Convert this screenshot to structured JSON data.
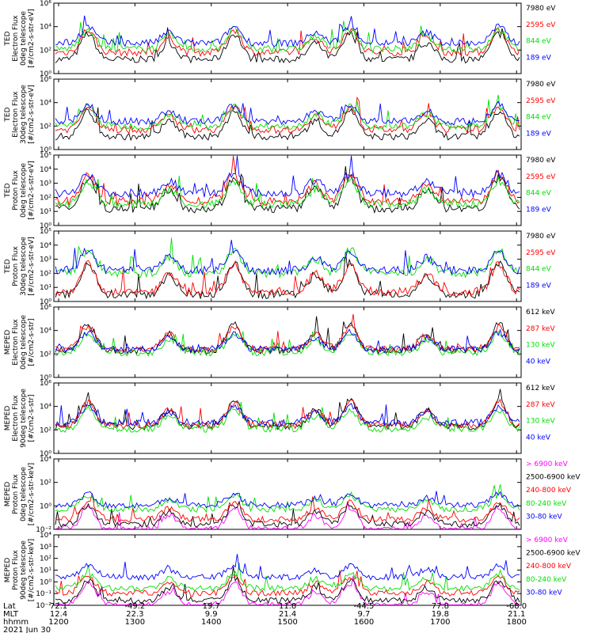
{
  "colors": {
    "black": "#000000",
    "red": "#ff0000",
    "green": "#00e000",
    "blue": "#0000ff",
    "magenta": "#ff00ff",
    "axis": "#000000"
  },
  "chart_data": [
    {
      "type": "line",
      "ylabel": [
        "TED",
        "Electron Flux",
        "0deg telescope",
        "[#/cm2-s-str-eV]"
      ],
      "yscale": "log",
      "ylim": [
        1,
        1000000
      ],
      "yticks": [
        "10⁰",
        "10²",
        "10⁴",
        "10⁶"
      ],
      "series": [
        {
          "name": "7980 eV",
          "color": "black",
          "level": 1.2
        },
        {
          "name": "2595 eV",
          "color": "red",
          "level": 1.8
        },
        {
          "name": "844 eV",
          "color": "green",
          "level": 2.1
        },
        {
          "name": "189 eV",
          "color": "blue",
          "level": 2.6
        }
      ]
    },
    {
      "type": "line",
      "ylabel": [
        "TED",
        "Electron Flux",
        "30deg telescope",
        "[#/cm2-s-str-eV]"
      ],
      "yscale": "log",
      "ylim": [
        1,
        1000000
      ],
      "yticks": [
        "10⁰",
        "10²",
        "10⁴",
        "10⁶"
      ],
      "series": [
        {
          "name": "7980 eV",
          "color": "black",
          "level": 1.1
        },
        {
          "name": "2595 eV",
          "color": "red",
          "level": 1.7
        },
        {
          "name": "844 eV",
          "color": "green",
          "level": 2.0
        },
        {
          "name": "189 eV",
          "color": "blue",
          "level": 2.4
        }
      ]
    },
    {
      "type": "line",
      "ylabel": [
        "TED",
        "Proton Flux",
        "0deg telescope",
        "[#/cm2-s-str-eV]"
      ],
      "yscale": "log",
      "ylim": [
        1,
        100000
      ],
      "yticks": [
        "10⁰",
        "10¹",
        "10²",
        "10³",
        "10⁴",
        "10⁵"
      ],
      "series": [
        {
          "name": "7980 eV",
          "color": "black",
          "level": 1.2
        },
        {
          "name": "2595 eV",
          "color": "red",
          "level": 1.7
        },
        {
          "name": "844 eV",
          "color": "green",
          "level": 1.5
        },
        {
          "name": "189 eV",
          "color": "blue",
          "level": 2.3
        }
      ]
    },
    {
      "type": "line",
      "ylabel": [
        "TED",
        "Proton Flux",
        "30deg telescope",
        "[#/cm2-s-str-eV]"
      ],
      "yscale": "log",
      "ylim": [
        1,
        100000
      ],
      "yticks": [
        "10⁰",
        "10¹",
        "10²",
        "10³",
        "10⁴",
        "10⁵"
      ],
      "series": [
        {
          "name": "7980 eV",
          "color": "black",
          "level": 0.5
        },
        {
          "name": "2595 eV",
          "color": "red",
          "level": 0.7
        },
        {
          "name": "844 eV",
          "color": "green",
          "level": 2.0
        },
        {
          "name": "189 eV",
          "color": "blue",
          "level": 2.2
        }
      ]
    },
    {
      "type": "line",
      "ylabel": [
        "MEPED",
        "Electron Flux",
        "0deg telescope",
        "[#/cm2-s-str]"
      ],
      "yscale": "log",
      "ylim": [
        1,
        1000000
      ],
      "yticks": [
        "10⁰",
        "10²",
        "10⁴",
        "10⁶"
      ],
      "series": [
        {
          "name": "612 keV",
          "color": "black",
          "level": 2.3
        },
        {
          "name": "287 keV",
          "color": "red",
          "level": 2.4
        },
        {
          "name": "130 keV",
          "color": "green",
          "level": 2.1
        },
        {
          "name": "40 keV",
          "color": "blue",
          "level": 2.4
        }
      ]
    },
    {
      "type": "line",
      "ylabel": [
        "MEPED",
        "Electron Flux",
        "90deg telescope",
        "[#/cm2-s-str]"
      ],
      "yscale": "log",
      "ylim": [
        1,
        1000000
      ],
      "yticks": [
        "10⁰",
        "10²",
        "10⁴",
        "10⁶"
      ],
      "series": [
        {
          "name": "612 keV",
          "color": "black",
          "level": 2.3
        },
        {
          "name": "287 keV",
          "color": "red",
          "level": 2.4
        },
        {
          "name": "130 keV",
          "color": "green",
          "level": 2.1
        },
        {
          "name": "40 keV",
          "color": "blue",
          "level": 2.6
        }
      ]
    },
    {
      "type": "line",
      "ylabel": [
        "MEPED",
        "Proton Flux",
        "0deg telescope",
        "[#/cm2-s-str-keV]"
      ],
      "yscale": "log",
      "ylim": [
        0.01,
        100000
      ],
      "yticks": [
        "10⁻²",
        "10⁰",
        "10²",
        "10⁴"
      ],
      "series": [
        {
          "name": "> 6900 keV",
          "color": "magenta",
          "level": -2.0
        },
        {
          "name": "2500-6900 keV",
          "color": "black",
          "level": -1.5
        },
        {
          "name": "240-800 keV",
          "color": "red",
          "level": -1.0
        },
        {
          "name": "80-240 keV",
          "color": "green",
          "level": 0.0
        },
        {
          "name": "30-80 keV",
          "color": "blue",
          "level": 0.4
        }
      ]
    },
    {
      "type": "line",
      "ylabel": [
        "MEPED",
        "Proton Flux",
        "90deg telescope",
        "[#/cm2-s-str-keV]"
      ],
      "yscale": "log",
      "ylim": [
        0.01,
        100000
      ],
      "yticks": [
        "10⁻²",
        "10⁻¹",
        "10⁰",
        "10¹",
        "10²",
        "10³",
        "10⁴"
      ],
      "series": [
        {
          "name": "> 6900 keV",
          "color": "magenta",
          "level": -2.0
        },
        {
          "name": "2500-6900 keV",
          "color": "black",
          "level": -1.5
        },
        {
          "name": "240-800 keV",
          "color": "red",
          "level": -0.8
        },
        {
          "name": "80-240 keV",
          "color": "green",
          "level": -0.3
        },
        {
          "name": "30-80 keV",
          "color": "blue",
          "level": 0.8
        }
      ]
    }
  ],
  "x_axis": {
    "row_labels": [
      "Lat",
      "MLT",
      "hhmm"
    ],
    "lat": [
      "72.1",
      "-49.2",
      "19.7",
      "11.8",
      "-44.5",
      "77.8",
      "-68.0"
    ],
    "mlt": [
      "12.4",
      "22.3",
      "9.9",
      "21.4",
      "9.7",
      "19.8",
      "21.1"
    ],
    "hhmm": [
      "1200",
      "1300",
      "1400",
      "1500",
      "1600",
      "1700",
      "1800"
    ],
    "date": "2021 Jun 30"
  }
}
